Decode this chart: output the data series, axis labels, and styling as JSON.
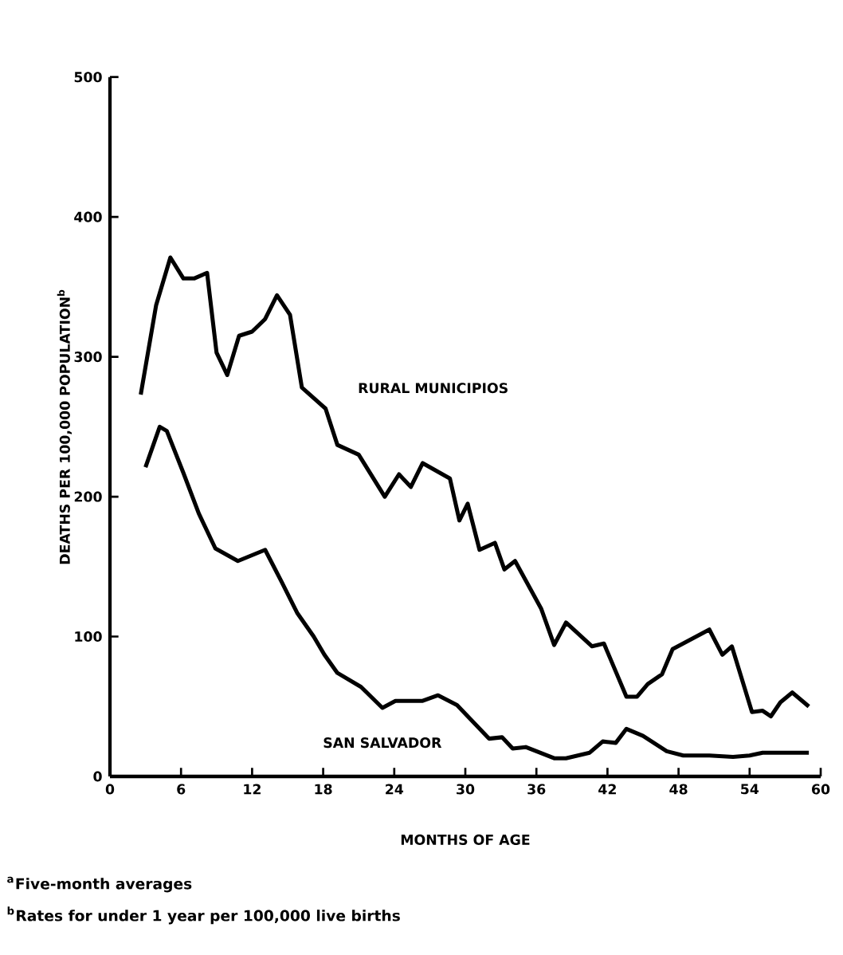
{
  "chart_data": {
    "type": "line",
    "xlabel": "MONTHS OF AGE",
    "ylabel": "DEATHS PER 100,000 POPULATION$^{b}$",
    "xlim": [
      0,
      60
    ],
    "xticks": [
      0,
      6,
      12,
      18,
      24,
      30,
      36,
      42,
      48,
      54,
      60
    ],
    "ylim": [
      0,
      500
    ],
    "yticks": [
      0,
      100,
      200,
      300,
      400,
      500
    ],
    "grid": false,
    "marker": "none",
    "line_style": "solid",
    "series": [
      {
        "name": "RURAL MUNICIPIOS",
        "color": "#000000",
        "x": [
          2.6,
          3.9,
          5.1,
          6.2,
          7.1,
          8.2,
          9.0,
          9.9,
          10.9,
          12.0,
          13.1,
          14.1,
          15.2,
          16.2,
          18.2,
          19.2,
          21.0,
          23.2,
          24.4,
          25.4,
          26.4,
          28.7,
          29.5,
          30.2,
          31.2,
          32.5,
          33.3,
          34.2,
          36.4,
          37.5,
          38.5,
          40.7,
          41.7,
          43.6,
          44.5,
          45.4,
          46.6,
          47.5,
          50.6,
          51.7,
          52.5,
          54.2,
          55.1,
          55.8,
          56.6,
          57.6,
          59.0
        ],
        "values": [
          273,
          337,
          371,
          356,
          356,
          360,
          303,
          287,
          315,
          318,
          327,
          344,
          330,
          278,
          263,
          237,
          230,
          200,
          216,
          207,
          224,
          213,
          183,
          195,
          162,
          167,
          148,
          154,
          120,
          94,
          110,
          93,
          95,
          57,
          57,
          66,
          73,
          91,
          105,
          87,
          93,
          46,
          47,
          43,
          53,
          60,
          50
        ]
      },
      {
        "name": "SAN SALVADOR",
        "color": "#000000",
        "x": [
          3.0,
          4.2,
          4.8,
          6.2,
          7.5,
          8.9,
          10.8,
          13.1,
          14.5,
          15.8,
          17.2,
          18.1,
          19.2,
          21.2,
          23.0,
          24.1,
          26.4,
          27.7,
          29.3,
          32.0,
          33.1,
          34.0,
          35.1,
          37.5,
          38.5,
          40.5,
          41.6,
          42.7,
          43.6,
          45.0,
          47.0,
          48.4,
          50.6,
          52.6,
          54.0,
          55.1,
          56.2,
          59.0
        ],
        "values": [
          221,
          250,
          247,
          217,
          188,
          163,
          154,
          162,
          139,
          117,
          100,
          87,
          74,
          64,
          49,
          54,
          54,
          58,
          51,
          27,
          28,
          20,
          21,
          13,
          13,
          17,
          25,
          24,
          34,
          29,
          18,
          15,
          15,
          14,
          15,
          17,
          17,
          17
        ]
      }
    ],
    "annotations": [
      "$^{a}$Five-month averages",
      "$^{b}$Rates for under 1 year per 100,000 live births"
    ]
  }
}
